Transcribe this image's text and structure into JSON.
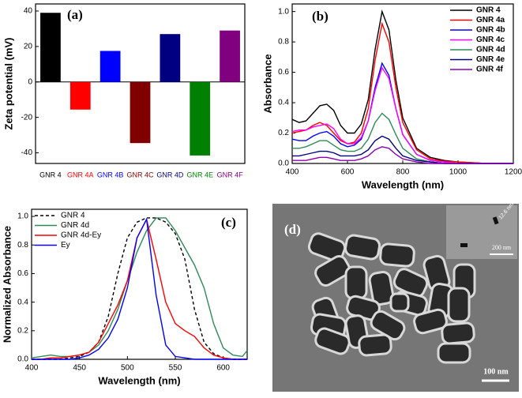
{
  "chart_data": [
    {
      "type": "bar",
      "panel_label": "(a)",
      "y_label": "Zeta potential (mV)",
      "categories": [
        "GNR 4",
        "GNR 4A",
        "GNR 4B",
        "GNR 4C",
        "GNR 4D",
        "GNR 4E",
        "GNR 4F"
      ],
      "values": [
        39,
        -15.6,
        17.5,
        -34.5,
        27,
        -41.5,
        29
      ],
      "colors": [
        "#000000",
        "#ff0000",
        "#0000ff",
        "#800000",
        "#000080",
        "#008000",
        "#800080"
      ],
      "ylim": [
        -46,
        44
      ],
      "yticks": [
        -40,
        -20,
        0,
        20,
        40
      ]
    },
    {
      "type": "line",
      "panel_label": "(b)",
      "x_label": "Wavelength (nm)",
      "y_label": "Absorbance",
      "x": [
        400,
        425,
        450,
        475,
        500,
        525,
        550,
        575,
        600,
        625,
        650,
        675,
        700,
        725,
        750,
        775,
        800,
        850,
        900,
        950,
        1000,
        1100,
        1200
      ],
      "series": [
        {
          "name": "GNR 4",
          "color": "#000000",
          "values": [
            0.29,
            0.27,
            0.28,
            0.33,
            0.38,
            0.39,
            0.35,
            0.25,
            0.2,
            0.2,
            0.26,
            0.42,
            0.75,
            1.0,
            0.88,
            0.55,
            0.3,
            0.1,
            0.04,
            0.02,
            0.01,
            0,
            0
          ]
        },
        {
          "name": "GNR 4a",
          "color": "#ff0000",
          "values": [
            0.2,
            0.21,
            0.22,
            0.25,
            0.27,
            0.25,
            0.2,
            0.15,
            0.13,
            0.14,
            0.2,
            0.36,
            0.68,
            0.92,
            0.8,
            0.5,
            0.27,
            0.09,
            0.03,
            0.015,
            0.01,
            0,
            0
          ]
        },
        {
          "name": "GNR 4b",
          "color": "#0000ff",
          "values": [
            0.16,
            0.15,
            0.15,
            0.18,
            0.2,
            0.21,
            0.18,
            0.13,
            0.11,
            0.12,
            0.16,
            0.28,
            0.5,
            0.66,
            0.58,
            0.36,
            0.19,
            0.06,
            0.02,
            0.01,
            0,
            0,
            0
          ]
        },
        {
          "name": "GNR 4c",
          "color": "#ff00ff",
          "values": [
            0.21,
            0.22,
            0.22,
            0.24,
            0.25,
            0.26,
            0.23,
            0.16,
            0.13,
            0.13,
            0.17,
            0.28,
            0.48,
            0.63,
            0.56,
            0.36,
            0.19,
            0.06,
            0.02,
            0.01,
            0,
            0,
            0
          ]
        },
        {
          "name": "GNR 4d",
          "color": "#2e8b57",
          "values": [
            0.1,
            0.1,
            0.11,
            0.13,
            0.15,
            0.15,
            0.12,
            0.09,
            0.08,
            0.08,
            0.1,
            0.16,
            0.27,
            0.33,
            0.29,
            0.19,
            0.1,
            0.03,
            0.01,
            0,
            0,
            0,
            0
          ]
        },
        {
          "name": "GNR 4e",
          "color": "#000080",
          "values": [
            0.05,
            0.05,
            0.06,
            0.07,
            0.08,
            0.08,
            0.07,
            0.05,
            0.05,
            0.05,
            0.06,
            0.09,
            0.15,
            0.18,
            0.16,
            0.1,
            0.05,
            0.02,
            0.01,
            0,
            0,
            0,
            0
          ]
        },
        {
          "name": "GNR 4f",
          "color": "#8b00b0",
          "values": [
            0.02,
            0.02,
            0.02,
            0.03,
            0.04,
            0.04,
            0.03,
            0.02,
            0.02,
            0.02,
            0.03,
            0.05,
            0.09,
            0.11,
            0.1,
            0.06,
            0.03,
            0.01,
            0,
            0,
            0,
            0,
            0
          ]
        }
      ],
      "xlim": [
        400,
        1200
      ],
      "xticks": [
        400,
        600,
        800,
        1000,
        1200
      ],
      "ylim": [
        0,
        1.05
      ],
      "yticks": [
        {
          "value": 0,
          "label": "0.0"
        },
        {
          "value": 0.2,
          "label": "0.2"
        },
        {
          "value": 0.4,
          "label": "0.4"
        },
        {
          "value": 0.6,
          "label": "0.6"
        },
        {
          "value": 0.8,
          "label": "0.8"
        },
        {
          "value": 1,
          "label": "1.0"
        }
      ],
      "legend": "upper-right"
    },
    {
      "type": "line",
      "panel_label": "(c)",
      "x_label": "Wavelength (nm)",
      "y_label": "Normalized Absorbance",
      "x": [
        400,
        410,
        420,
        430,
        440,
        450,
        460,
        470,
        480,
        490,
        500,
        510,
        520,
        530,
        540,
        550,
        560,
        570,
        580,
        590,
        600,
        610,
        620,
        625
      ],
      "series": [
        {
          "name": "GNR 4",
          "color": "#000000",
          "dash": "dashed",
          "values": [
            0,
            0,
            0,
            0,
            0.01,
            0.02,
            0.05,
            0.12,
            0.3,
            0.6,
            0.85,
            0.96,
            0.99,
            0.99,
            0.96,
            0.88,
            0.7,
            0.35,
            0.12,
            0.04,
            0.01,
            0,
            0,
            0
          ]
        },
        {
          "name": "GNR 4d",
          "color": "#2e8b57",
          "values": [
            0.01,
            0.02,
            0.03,
            0.02,
            0.02,
            0.03,
            0.05,
            0.1,
            0.2,
            0.35,
            0.55,
            0.75,
            0.9,
            0.99,
            0.99,
            0.9,
            0.78,
            0.66,
            0.5,
            0.25,
            0.08,
            0.03,
            0.02,
            0.06
          ]
        },
        {
          "name": "GNR 4d-Ey",
          "color": "#ff0000",
          "values": [
            0,
            0,
            0.01,
            0.01,
            0.02,
            0.03,
            0.05,
            0.12,
            0.25,
            0.38,
            0.55,
            0.85,
            0.98,
            0.7,
            0.4,
            0.25,
            0.2,
            0.16,
            0.08,
            0.03,
            0.01,
            0,
            0,
            0
          ]
        },
        {
          "name": "Ey",
          "color": "#0000ff",
          "values": [
            0,
            0,
            0,
            0,
            0,
            0.01,
            0.03,
            0.07,
            0.15,
            0.28,
            0.5,
            0.85,
            0.98,
            0.45,
            0.1,
            0.02,
            0.01,
            0,
            0,
            0,
            0,
            0,
            0,
            0
          ]
        }
      ],
      "xlim": [
        400,
        625
      ],
      "xticks": [
        400,
        450,
        500,
        550,
        600
      ],
      "ylim": [
        0,
        1.05
      ],
      "yticks": [
        {
          "value": 0,
          "label": "0.0"
        },
        {
          "value": 0.2,
          "label": "0.2"
        },
        {
          "value": 0.4,
          "label": "0.4"
        },
        {
          "value": 0.6,
          "label": "0.6"
        },
        {
          "value": 0.8,
          "label": "0.8"
        },
        {
          "value": 1,
          "label": "1.0"
        }
      ],
      "legend": "upper-left"
    }
  ],
  "image_panel": {
    "label": "(d)",
    "scale_bar": "100 nm",
    "inset_scale_bar": "200 nm",
    "inset_annotation": "12.6 nm"
  }
}
